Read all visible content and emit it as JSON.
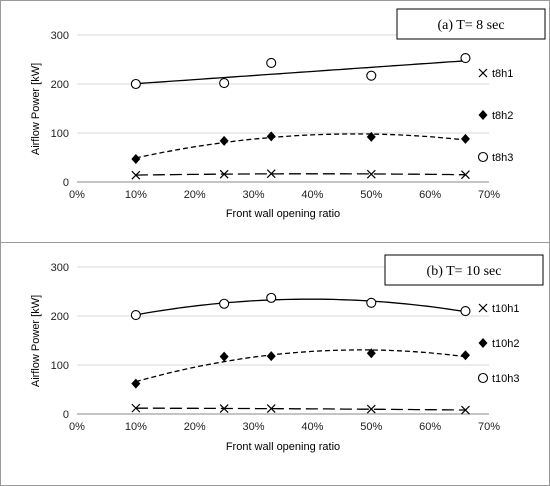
{
  "chart_data": [
    {
      "type": "scatter",
      "title": "(a)  T= 8 sec",
      "xlabel": "Front wall opening ratio",
      "ylabel": "Airflow Power [kW]",
      "xlim": [
        0,
        70
      ],
      "ylim": [
        0,
        300
      ],
      "x_ticks": [
        "0%",
        "10%",
        "20%",
        "30%",
        "40%",
        "50%",
        "60%",
        "70%"
      ],
      "y_ticks": [
        "0",
        "100",
        "200",
        "300"
      ],
      "grid": "horizontal",
      "legend_position": "right",
      "series": [
        {
          "name": "t8h1",
          "marker": "x",
          "trend": "long-dash",
          "x": [
            10,
            25,
            33,
            50,
            66
          ],
          "y": [
            14,
            16,
            17,
            16,
            15
          ]
        },
        {
          "name": "t8h2",
          "marker": "diamond",
          "trend": "dashed",
          "x": [
            10,
            25,
            33,
            50,
            66
          ],
          "y": [
            47,
            84,
            93,
            92,
            88
          ]
        },
        {
          "name": "t8h3",
          "marker": "open-circle",
          "trend": "solid",
          "x": [
            10,
            25,
            33,
            50,
            66
          ],
          "y": [
            200,
            202,
            243,
            217,
            253
          ]
        }
      ]
    },
    {
      "type": "scatter",
      "title": "(b)  T= 10 sec",
      "xlabel": "Front wall opening ratio",
      "ylabel": "Airflow Power [kW]",
      "xlim": [
        0,
        70
      ],
      "ylim": [
        0,
        300
      ],
      "x_ticks": [
        "0%",
        "10%",
        "20%",
        "30%",
        "40%",
        "50%",
        "60%",
        "70%"
      ],
      "y_ticks": [
        "0",
        "100",
        "200",
        "300"
      ],
      "grid": "horizontal",
      "legend_position": "right",
      "series": [
        {
          "name": "t10h1",
          "marker": "x",
          "trend": "long-dash",
          "x": [
            10,
            25,
            33,
            50,
            66
          ],
          "y": [
            12,
            11,
            11,
            10,
            8
          ]
        },
        {
          "name": "t10h2",
          "marker": "diamond",
          "trend": "dashed",
          "x": [
            10,
            25,
            33,
            50,
            66
          ],
          "y": [
            62,
            117,
            118,
            124,
            120
          ]
        },
        {
          "name": "t10h3",
          "marker": "open-circle",
          "trend": "solid",
          "x": [
            10,
            25,
            33,
            50,
            66
          ],
          "y": [
            202,
            225,
            237,
            227,
            210
          ]
        }
      ]
    }
  ]
}
